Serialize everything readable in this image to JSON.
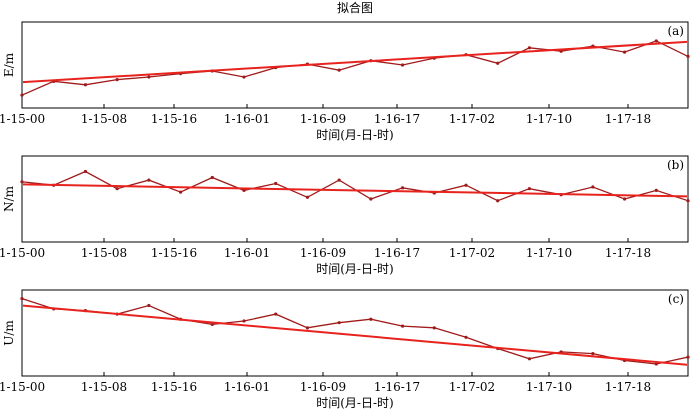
{
  "figure_title": "拟合图",
  "colors": {
    "data": "#a01a1a",
    "fit": "#e8231e",
    "axis": "#000000"
  },
  "chart_data": [
    {
      "type": "line",
      "panel_label": "(a)",
      "ylabel": "E/m",
      "xlabel": "时间(月-日-时)",
      "x_ticks": [
        "1-15-00",
        "1-15-08",
        "1-15-16",
        "1-16-01",
        "1-16-09",
        "1-16-17",
        "1-17-02",
        "1-17-10",
        "1-17-18"
      ],
      "x_range_hours": [
        0,
        63
      ],
      "ylim": [
        0,
        1
      ],
      "series": [
        {
          "kind": "observations",
          "x_hours": [
            0,
            3,
            6,
            9,
            12,
            15,
            18,
            21,
            24,
            27,
            30,
            33,
            36,
            39,
            42,
            45,
            48,
            51,
            54,
            57,
            60,
            63
          ],
          "values": [
            0.15,
            0.31,
            0.27,
            0.33,
            0.36,
            0.4,
            0.43,
            0.36,
            0.47,
            0.51,
            0.44,
            0.55,
            0.5,
            0.58,
            0.62,
            0.52,
            0.7,
            0.66,
            0.72,
            0.65,
            0.78,
            0.6
          ]
        },
        {
          "kind": "fit",
          "x_hours": [
            0,
            63
          ],
          "values": [
            0.3,
            0.77
          ]
        }
      ]
    },
    {
      "type": "line",
      "panel_label": "(b)",
      "ylabel": "N/m",
      "xlabel": "时间(月-日-时)",
      "x_ticks": [
        "1-15-00",
        "1-15-08",
        "1-15-16",
        "1-16-01",
        "1-16-09",
        "1-16-17",
        "1-17-02",
        "1-17-10",
        "1-17-18"
      ],
      "x_range_hours": [
        0,
        63
      ],
      "ylim": [
        0,
        1
      ],
      "series": [
        {
          "kind": "observations",
          "x_hours": [
            0,
            3,
            6,
            9,
            12,
            15,
            18,
            21,
            24,
            27,
            30,
            33,
            36,
            39,
            42,
            45,
            48,
            51,
            54,
            57,
            60,
            63
          ],
          "values": [
            0.7,
            0.66,
            0.82,
            0.62,
            0.72,
            0.58,
            0.75,
            0.6,
            0.68,
            0.52,
            0.72,
            0.5,
            0.63,
            0.57,
            0.66,
            0.48,
            0.62,
            0.55,
            0.64,
            0.5,
            0.6,
            0.48
          ]
        },
        {
          "kind": "fit",
          "x_hours": [
            0,
            63
          ],
          "values": [
            0.67,
            0.53
          ]
        }
      ]
    },
    {
      "type": "line",
      "panel_label": "(c)",
      "ylabel": "U/m",
      "xlabel": "时间(月-日-时)",
      "x_ticks": [
        "1-15-00",
        "1-15-08",
        "1-15-16",
        "1-16-01",
        "1-16-09",
        "1-16-17",
        "1-17-02",
        "1-17-10",
        "1-17-18"
      ],
      "x_range_hours": [
        0,
        63
      ],
      "ylim": [
        0,
        1
      ],
      "series": [
        {
          "kind": "observations",
          "x_hours": [
            0,
            3,
            6,
            9,
            12,
            15,
            18,
            21,
            24,
            27,
            30,
            33,
            36,
            39,
            42,
            45,
            48,
            51,
            54,
            57,
            60,
            63
          ],
          "values": [
            0.9,
            0.78,
            0.76,
            0.72,
            0.82,
            0.66,
            0.6,
            0.64,
            0.72,
            0.56,
            0.62,
            0.66,
            0.58,
            0.56,
            0.45,
            0.32,
            0.2,
            0.28,
            0.26,
            0.18,
            0.14,
            0.22
          ]
        },
        {
          "kind": "fit",
          "x_hours": [
            0,
            63
          ],
          "values": [
            0.82,
            0.13
          ]
        }
      ]
    }
  ]
}
